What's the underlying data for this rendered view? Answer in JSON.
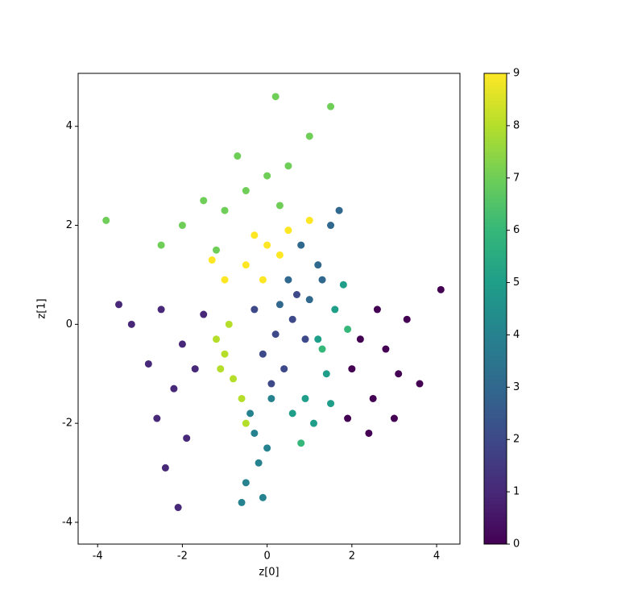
{
  "chart_data": {
    "type": "scatter",
    "xlabel": "z[0]",
    "ylabel": "z[1]",
    "xlim": [
      -4.46,
      4.55
    ],
    "ylim": [
      -4.44,
      5.07
    ],
    "xticks": [
      -4,
      -2,
      0,
      2,
      4
    ],
    "yticks": [
      -4,
      -2,
      0,
      2,
      4
    ],
    "x": [
      2.2,
      2.8,
      3.1,
      2.5,
      2.0,
      3.3,
      2.6,
      1.9,
      3.6,
      2.4,
      4.1,
      3.0,
      -2.5,
      -2.0,
      -2.8,
      -2.2,
      -1.7,
      -3.2,
      -2.6,
      -1.9,
      -3.5,
      -2.4,
      -2.1,
      -1.5,
      0.2,
      0.6,
      -0.1,
      0.4,
      0.9,
      -0.3,
      0.7,
      0.1,
      0.8,
      1.2,
      0.5,
      1.5,
      1.0,
      0.3,
      1.7,
      1.3,
      -0.3,
      -0.2,
      -0.5,
      0.0,
      -0.4,
      -0.1,
      0.1,
      -0.6,
      1.2,
      1.4,
      0.9,
      1.6,
      1.1,
      0.6,
      1.5,
      1.8,
      1.3,
      0.8,
      1.9,
      -0.5,
      -1.0,
      0.0,
      -1.5,
      0.3,
      -0.7,
      -2.0,
      1.0,
      -2.5,
      -3.8,
      0.5,
      1.5,
      -1.2,
      0.2,
      -1.0,
      -0.8,
      -1.2,
      -0.6,
      -0.9,
      -0.5,
      -1.1,
      0.0,
      -0.5,
      0.5,
      -1.0,
      0.3,
      -0.3,
      1.0,
      -1.3,
      -0.1
    ],
    "y": [
      -0.3,
      -0.5,
      -1.0,
      -1.5,
      -0.9,
      0.1,
      0.3,
      -1.9,
      -1.2,
      -2.2,
      0.7,
      -1.9,
      0.3,
      -0.4,
      -0.8,
      -1.3,
      -0.9,
      0.0,
      -1.9,
      -2.3,
      0.4,
      -2.9,
      -3.7,
      0.2,
      -0.2,
      0.1,
      -0.6,
      -0.9,
      -0.3,
      0.3,
      0.6,
      -1.2,
      1.6,
      1.2,
      0.9,
      2.0,
      0.5,
      0.4,
      2.3,
      0.9,
      -2.2,
      -2.8,
      -3.2,
      -2.5,
      -1.8,
      -3.5,
      -1.5,
      -3.6,
      -0.3,
      -1.0,
      -1.5,
      0.3,
      -2.0,
      -1.8,
      -1.6,
      0.8,
      -0.5,
      -2.4,
      -0.1,
      2.7,
      2.3,
      3.0,
      2.5,
      2.4,
      3.4,
      2.0,
      3.8,
      1.6,
      2.1,
      3.2,
      4.4,
      1.5,
      4.6,
      -0.6,
      -1.1,
      -0.3,
      -1.5,
      0.0,
      -2.0,
      -0.9,
      1.6,
      1.2,
      1.9,
      0.9,
      1.4,
      1.8,
      2.1,
      1.3,
      0.9
    ],
    "c": [
      0,
      0,
      0,
      0,
      0,
      0,
      0,
      0,
      0,
      0,
      0,
      0,
      1,
      1,
      1,
      1,
      1,
      1,
      1,
      1,
      1,
      1,
      1,
      1,
      2,
      2,
      2,
      2,
      2,
      2,
      2,
      2,
      3,
      3,
      3,
      3,
      3,
      3,
      3,
      3,
      4,
      4,
      4,
      4,
      4,
      4,
      4,
      4,
      5,
      5,
      5,
      5,
      5,
      5,
      5,
      5,
      6,
      6,
      6,
      7,
      7,
      7,
      7,
      7,
      7,
      7,
      7,
      7,
      7,
      7,
      7,
      7,
      7,
      8,
      8,
      8,
      8,
      8,
      8,
      8,
      9,
      9,
      9,
      9,
      9,
      9,
      9,
      9,
      9
    ],
    "colorbar": {
      "lim": [
        0,
        9
      ],
      "ticks": [
        0,
        1,
        2,
        3,
        4,
        5,
        6,
        7,
        8,
        9
      ],
      "colormap": [
        "#440154",
        "#482878",
        "#3e4989",
        "#31688e",
        "#26828e",
        "#1f9e89",
        "#35b779",
        "#6ece58",
        "#b5de2b",
        "#fde725"
      ]
    }
  }
}
